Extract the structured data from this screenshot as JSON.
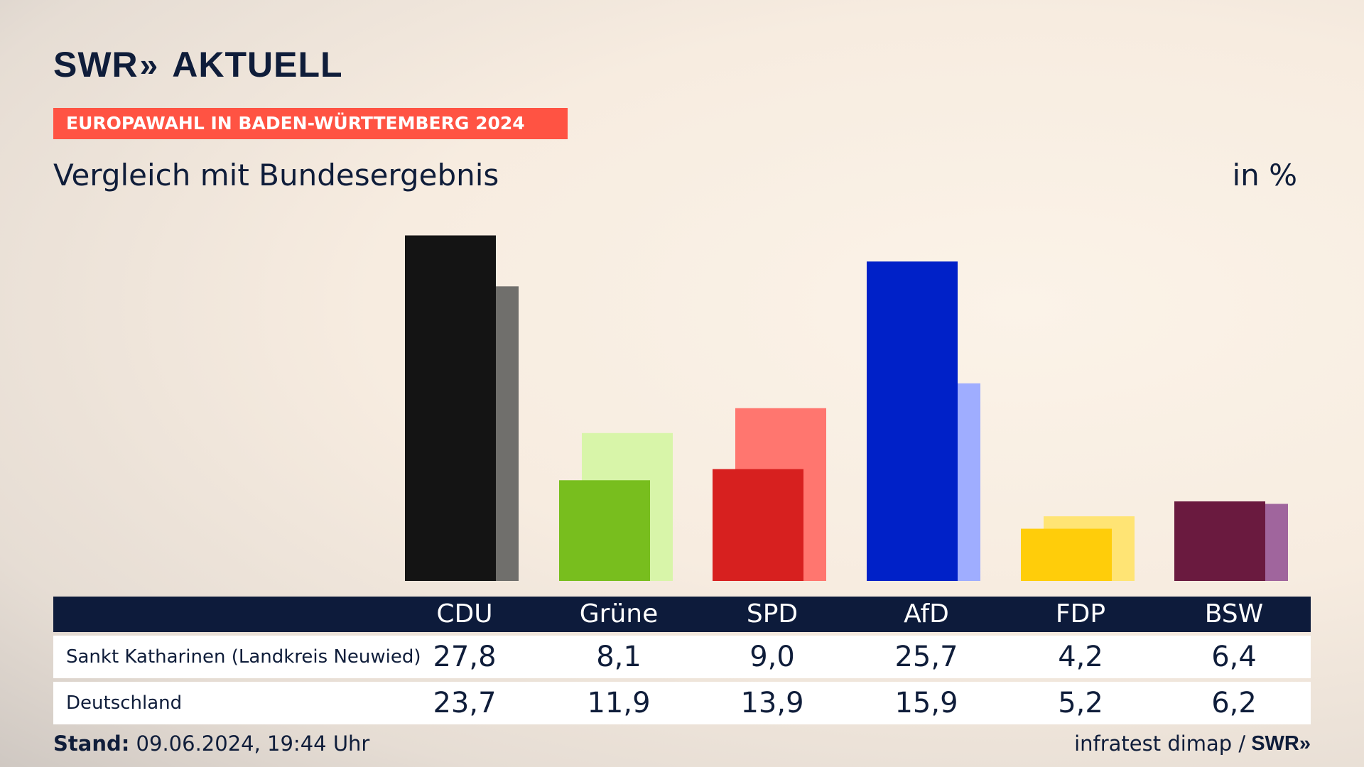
{
  "brand": {
    "name": "SWR",
    "chevrons": "»",
    "product": "AKTUELL"
  },
  "banner": "EUROPAWAHL IN BADEN-WÜRTTEMBERG 2024",
  "subtitle": "Vergleich mit Bundesergebnis",
  "unit": "in %",
  "footer": {
    "stand_label": "Stand:",
    "stand_value": "09.06.2024, 19:44 Uhr",
    "source": "infratest dimap /",
    "source_logo": "SWR»"
  },
  "chart_data": {
    "type": "bar",
    "categories": [
      "CDU",
      "Grüne",
      "SPD",
      "AfD",
      "FDP",
      "BSW"
    ],
    "series": [
      {
        "name": "Sankt Katharinen (Landkreis Neuwied)",
        "values": [
          "27,8",
          "8,1",
          "9,0",
          "25,7",
          "4,2",
          "6,4"
        ],
        "numeric": [
          27.8,
          8.1,
          9.0,
          25.7,
          4.2,
          6.4
        ],
        "colors": [
          "#141414",
          "#78be1e",
          "#d7201f",
          "#0021c8",
          "#ffcd0a",
          "#6a1a3f"
        ]
      },
      {
        "name": "Deutschland",
        "values": [
          "23,7",
          "11,9",
          "13,9",
          "15,9",
          "5,2",
          "6,2"
        ],
        "numeric": [
          23.7,
          11.9,
          13.9,
          15.9,
          5.2,
          6.2
        ],
        "colors": [
          "#706f6c",
          "#d8f5a9",
          "#ff766f",
          "#9fadff",
          "#ffe474",
          "#a0659d"
        ]
      }
    ],
    "ylim": [
      0,
      28
    ],
    "grid": false,
    "legend": "table-below"
  }
}
